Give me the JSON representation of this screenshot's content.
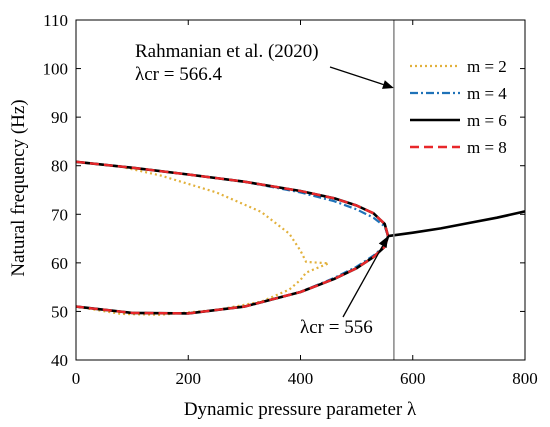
{
  "chart_data": {
    "type": "line",
    "xlabel": "Dynamic pressure parameter λ",
    "ylabel": "Natural frequency (Hz)",
    "xlim": [
      0,
      800
    ],
    "ylim": [
      40,
      110
    ],
    "xticks": [
      "0",
      "200",
      "400",
      "600",
      "800"
    ],
    "yticks": [
      "40",
      "50",
      "60",
      "70",
      "80",
      "90",
      "100",
      "110"
    ],
    "grid": false,
    "legend_position": "top-right",
    "vertical_reference_line_x": 566.4,
    "annotations": [
      {
        "line1": "Rahmanian et al. (2020)",
        "line2": "λcr = 566.4",
        "points_to_x": 566.4,
        "points_to_y": 96
      },
      {
        "text": "λcr = 556",
        "points_to_x": 556,
        "points_to_y": 65.5
      }
    ],
    "series": [
      {
        "name": "m = 2",
        "color": "#e2b13c",
        "dash": "2,3",
        "x": [
          0,
          80,
          150,
          250,
          330,
          380,
          400,
          410,
          450,
          410,
          400,
          380,
          330,
          250,
          150,
          80,
          0
        ],
        "y": [
          80.8,
          79.8,
          78,
          74.5,
          70.5,
          66,
          62.5,
          60.2,
          59.9,
          58,
          56.5,
          54.5,
          52,
          50.3,
          49.3,
          49.5,
          51
        ]
      },
      {
        "name": "m = 4",
        "color": "#1f72b8",
        "dash": "8,3,2,3",
        "x": [
          0,
          100,
          200,
          300,
          400,
          460,
          500,
          530,
          550,
          556,
          550,
          530,
          500,
          460,
          400,
          300,
          200,
          100,
          0
        ],
        "y": [
          80.8,
          79.6,
          78.2,
          76.7,
          74.5,
          72.7,
          71,
          69.3,
          67.5,
          65.5,
          63.5,
          61.5,
          59.2,
          56.9,
          54,
          51,
          49.6,
          49.7,
          51
        ]
      },
      {
        "name": "m = 6",
        "color": "#000000",
        "dash": "",
        "x": [
          0,
          100,
          200,
          300,
          400,
          460,
          500,
          530,
          550,
          556,
          550,
          530,
          500,
          460,
          400,
          300,
          200,
          100,
          0
        ],
        "y": [
          80.8,
          79.6,
          78.2,
          76.7,
          74.8,
          73.3,
          71.8,
          70.2,
          68,
          65.5,
          63.3,
          61.2,
          58.9,
          56.7,
          54,
          51,
          49.6,
          49.7,
          51
        ]
      },
      {
        "name": "m = 8",
        "color": "#e8272a",
        "dash": "9,5",
        "x": [
          0,
          100,
          200,
          300,
          400,
          460,
          500,
          530,
          550,
          556,
          550,
          530,
          500,
          460,
          400,
          300,
          200,
          100,
          0
        ],
        "y": [
          80.8,
          79.6,
          78.2,
          76.7,
          74.8,
          73.3,
          71.8,
          70.2,
          68,
          65.5,
          63.3,
          61.2,
          58.9,
          56.7,
          54,
          51,
          49.6,
          49.7,
          51
        ]
      },
      {
        "name": "",
        "color": "#000000",
        "dash": "",
        "x": [
          556,
          600,
          650,
          700,
          750,
          800
        ],
        "y": [
          65.5,
          66.2,
          67.1,
          68.2,
          69.3,
          70.6
        ]
      }
    ]
  }
}
